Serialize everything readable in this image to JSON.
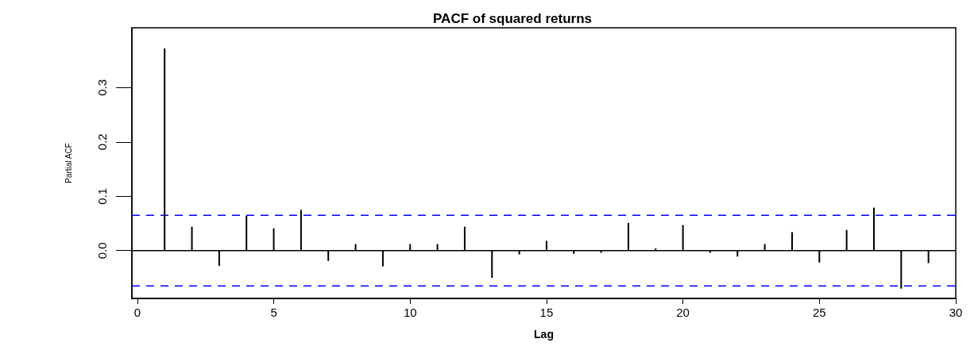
{
  "chart_data": {
    "type": "bar",
    "title": "PACF of squared returns",
    "xlabel": "Lag",
    "ylabel": "Partial ACF",
    "x": [
      1,
      2,
      3,
      4,
      5,
      6,
      7,
      8,
      9,
      10,
      11,
      12,
      13,
      14,
      15,
      16,
      17,
      18,
      19,
      20,
      21,
      22,
      23,
      24,
      25,
      26,
      27,
      28,
      29
    ],
    "values": [
      0.372,
      0.044,
      -0.028,
      0.064,
      0.041,
      0.075,
      -0.019,
      0.012,
      -0.029,
      0.012,
      0.012,
      0.044,
      -0.05,
      -0.007,
      0.018,
      -0.006,
      -0.004,
      0.051,
      0.004,
      0.047,
      -0.004,
      -0.011,
      0.012,
      0.034,
      -0.022,
      0.038,
      0.079,
      -0.07,
      -0.023
    ],
    "color": "#000000",
    "xlim": [
      -0.2,
      30
    ],
    "xticks": [
      0,
      5,
      10,
      15,
      20,
      25,
      30
    ],
    "ylim": [
      -0.088,
      0.41
    ],
    "yticks": [
      {
        "value": 0,
        "label": "0.0"
      },
      {
        "value": 0.1,
        "label": "0.1"
      },
      {
        "value": 0.2,
        "label": "0.2"
      },
      {
        "value": 0.3,
        "label": "0.3"
      }
    ],
    "ref_lines": [
      {
        "axis": "y",
        "value": 0,
        "color": "#000000",
        "line_style": "solid"
      },
      {
        "axis": "y",
        "value": 0.065,
        "color": "#0000ff",
        "line_style": "dashed"
      },
      {
        "axis": "y",
        "value": -0.065,
        "color": "#0000ff",
        "line_style": "dashed"
      }
    ],
    "grid": false
  }
}
